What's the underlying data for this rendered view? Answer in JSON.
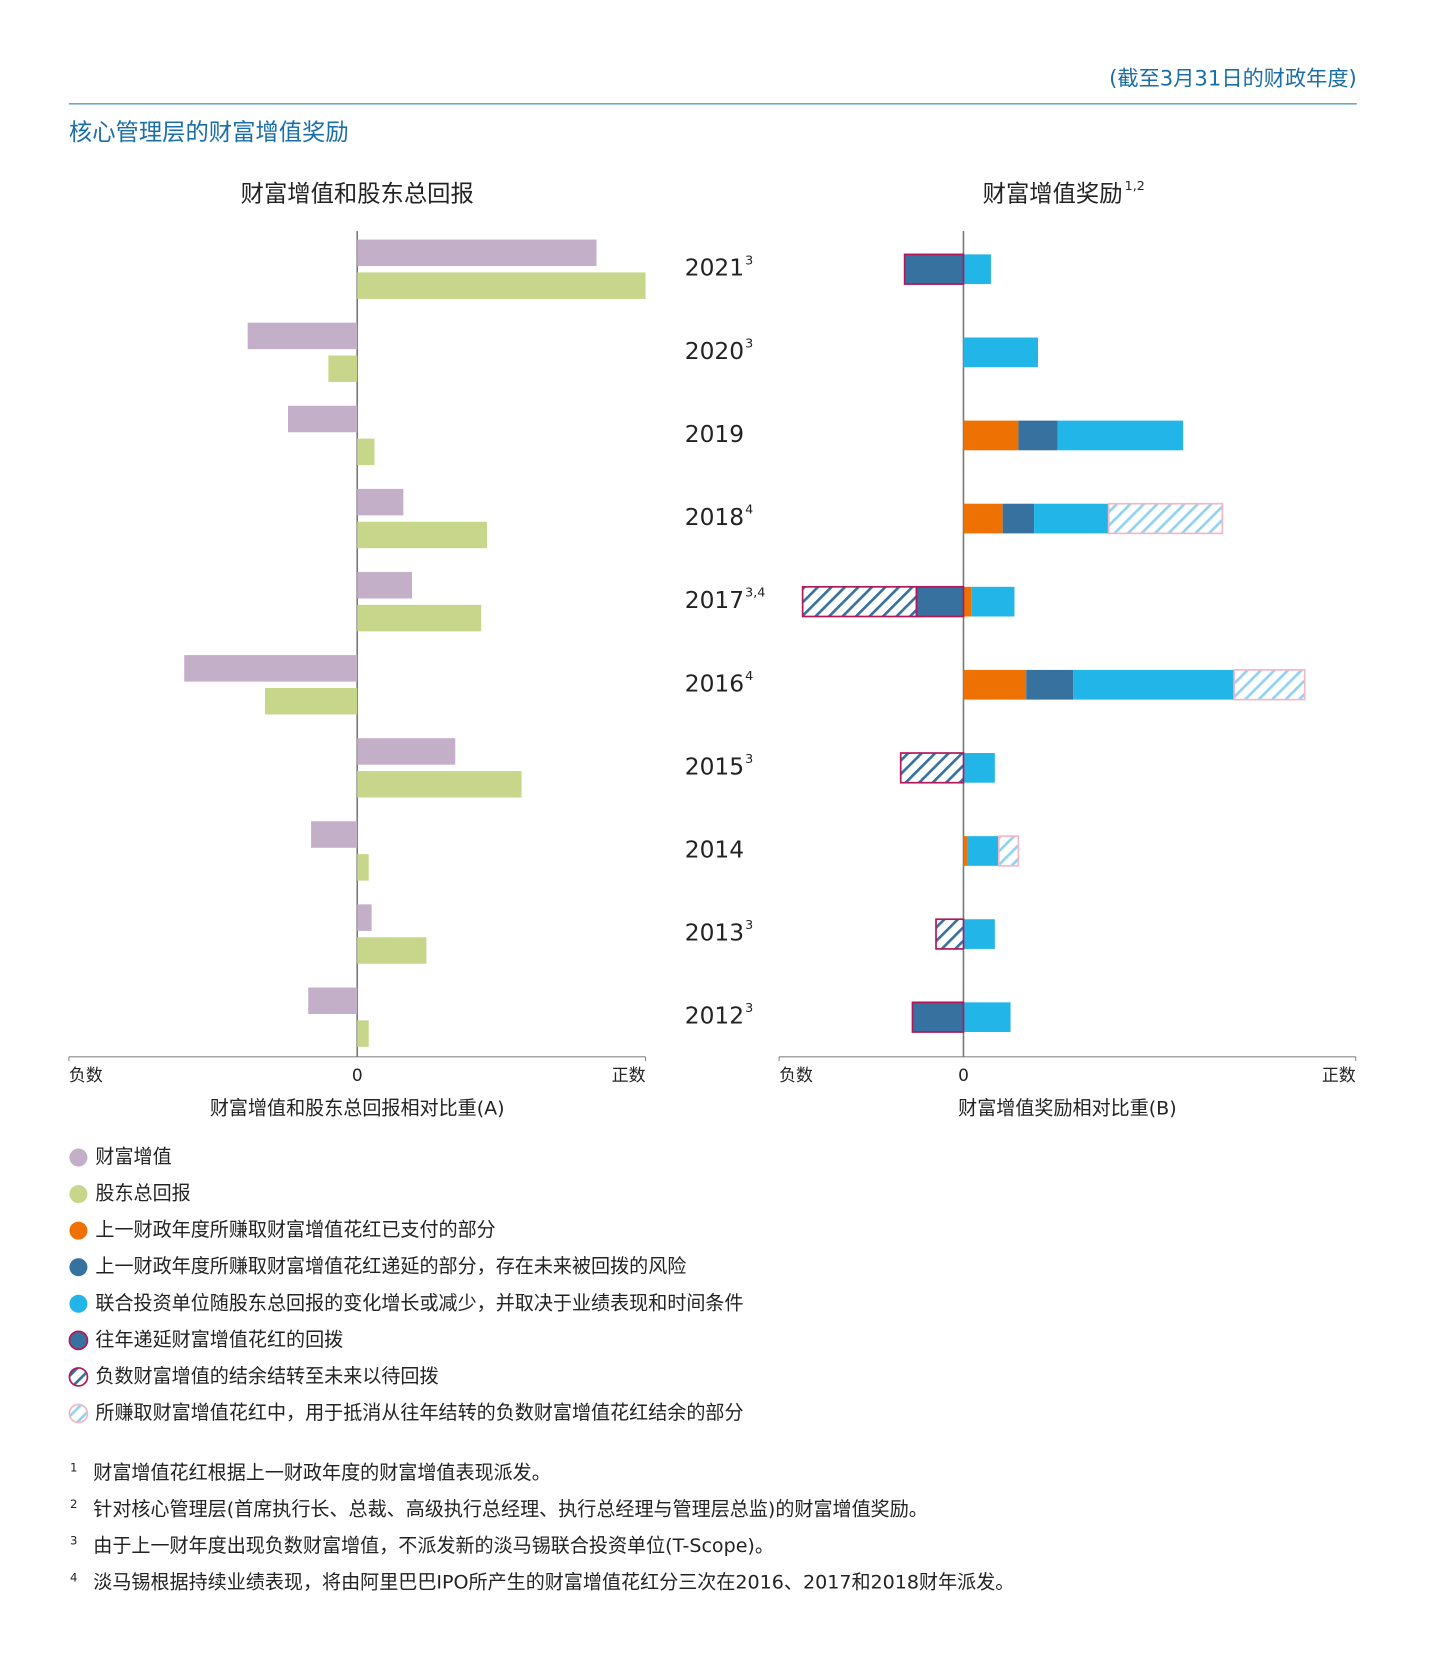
{
  "header": {
    "note": "(截至3月31日的财政年度)",
    "title": "核心管理层的财富增值奖励"
  },
  "chart_data": [
    {
      "type": "bar",
      "orientation": "horizontal",
      "title": "财富增值和股东总回报",
      "xlabel": "财富增值和股东总回报相对比重(A)",
      "xlim": [
        -1,
        1
      ],
      "xticks": [
        {
          "value": -1,
          "label": "负数"
        },
        0,
        {
          "value": 1,
          "label": "正数"
        }
      ],
      "series": [
        {
          "name": "财富增值",
          "color": "#c3afc8",
          "values": [
            0.83,
            -0.38,
            -0.24,
            0.16,
            0.19,
            -0.6,
            0.34,
            -0.16,
            0.05,
            -0.17
          ]
        },
        {
          "name": "股东总回报",
          "color": "#c8d68c",
          "values": [
            1.0,
            -0.1,
            0.06,
            0.45,
            0.43,
            -0.32,
            0.57,
            0.04,
            0.24,
            0.04
          ]
        }
      ]
    },
    {
      "type": "stacked_bar",
      "orientation": "horizontal",
      "title": "财富增值奖励",
      "title_note": "1,2",
      "xlabel": "财富增值奖励相对比重(B)",
      "categories": [
        "2021",
        "2020",
        "2019",
        "2018",
        "2017",
        "2016",
        "2015",
        "2014",
        "2013",
        "2012"
      ],
      "category_notes": [
        "3",
        "3",
        null,
        "4",
        "3,4",
        "4",
        "3",
        null,
        "3",
        "3"
      ],
      "xlim": [
        -0.47,
        1
      ],
      "xticks": [
        {
          "value": -0.47,
          "label": "负数"
        },
        0,
        {
          "value": 1,
          "label": "正数"
        }
      ],
      "series": [
        {
          "name": "上一财政年度所赚取财富增值花红已支付的部分",
          "color": "#ee7203",
          "values": [
            null,
            null,
            0.14,
            0.1,
            0.02,
            0.16,
            null,
            0.01,
            null,
            null
          ]
        },
        {
          "name": "上一财政年度所赚取财富增值花红递延的部分，存在未来被回拨的风险",
          "color": "#36719f",
          "values": [
            null,
            null,
            0.1,
            0.08,
            null,
            0.12,
            null,
            null,
            null,
            null
          ]
        },
        {
          "name": "联合投资单位随股东总回报的变化增长或减少，并取决于业绩表现和时间条件",
          "color": "#22b5e8",
          "values": [
            0.07,
            0.19,
            0.32,
            0.19,
            0.11,
            0.41,
            0.08,
            0.08,
            0.08,
            0.12
          ]
        },
        {
          "name": "往年递延财富增值花红的回拨",
          "color": "#36719f",
          "border": "#b0185a",
          "values": [
            -0.15,
            null,
            null,
            null,
            -0.12,
            null,
            null,
            null,
            null,
            -0.13
          ]
        },
        {
          "name": "负数财富增值的结余结转至未来以待回拨",
          "color": "#36719f",
          "border": "#b0185a",
          "pattern": "hatch",
          "values": [
            null,
            null,
            null,
            null,
            -0.29,
            null,
            -0.16,
            null,
            -0.07,
            null
          ]
        },
        {
          "name": "所赚取财富增值花红中，用于抵消从往年结转的负数财富增值花红结余的部分",
          "color": "#8fd3f0",
          "border": "#f2b8c6",
          "pattern": "hatch",
          "values": [
            null,
            null,
            null,
            0.29,
            null,
            0.18,
            null,
            0.05,
            null,
            null
          ]
        }
      ]
    }
  ],
  "footnotes": [
    {
      "marker": "1",
      "text": "财富增值花红根据上一财政年度的财富增值表现派发。"
    },
    {
      "marker": "2",
      "text": "针对核心管理层(首席执行长、总裁、高级执行总经理、执行总经理与管理层总监)的财富增值奖励。"
    },
    {
      "marker": "3",
      "text": "由于上一财年度出现负数财富增值，不派发新的淡马锡联合投资单位(T-Scope)。"
    },
    {
      "marker": "4",
      "text": "淡马锡根据持续业绩表现，将由阿里巴巴IPO所产生的财富增值花红分三次在2016、2017和2018财年派发。"
    }
  ]
}
